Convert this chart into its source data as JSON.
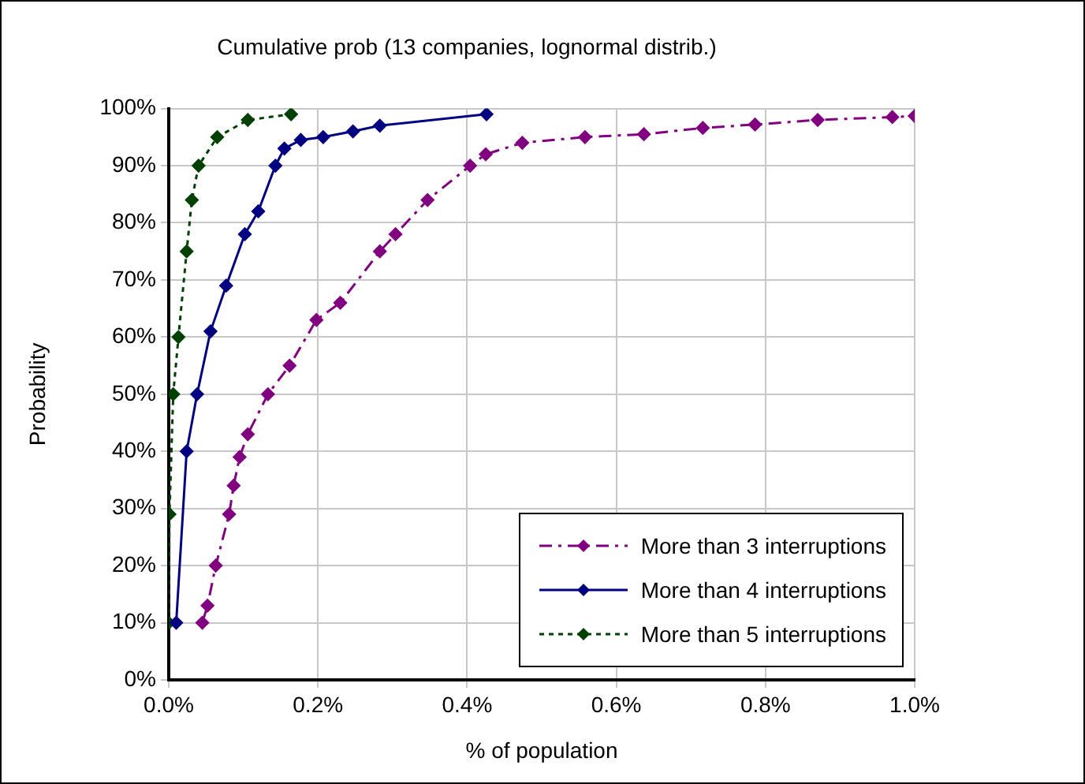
{
  "chart_data": {
    "type": "line",
    "title": "Cumulative prob (13 companies, lognormal distrib.)",
    "xlabel": "% of population",
    "ylabel": "Probability",
    "xlim": [
      0,
      1
    ],
    "xticks": [
      {
        "value": 0,
        "label": "0.0%"
      },
      {
        "value": 0.2,
        "label": "0.2%"
      },
      {
        "value": 0.4,
        "label": "0.4%"
      },
      {
        "value": 0.6,
        "label": "0.6%"
      },
      {
        "value": 0.8,
        "label": "0.8%"
      },
      {
        "value": 1,
        "label": "1.0%"
      }
    ],
    "ylim": [
      0,
      100
    ],
    "yticks": [
      {
        "value": 0,
        "label": "0%"
      },
      {
        "value": 10,
        "label": "10%"
      },
      {
        "value": 20,
        "label": "20%"
      },
      {
        "value": 30,
        "label": "30%"
      },
      {
        "value": 40,
        "label": "40%"
      },
      {
        "value": 50,
        "label": "50%"
      },
      {
        "value": 60,
        "label": "60%"
      },
      {
        "value": 70,
        "label": "70%"
      },
      {
        "value": 80,
        "label": "80%"
      },
      {
        "value": 90,
        "label": "90%"
      },
      {
        "value": 100,
        "label": "100%"
      }
    ],
    "grid": true,
    "legend": "bottom right",
    "marker": "diamond",
    "series": [
      {
        "name": "More than 3 interruptions",
        "color": "#800080",
        "line_style": "dashed",
        "x": [
          0.045,
          0.052,
          0.063,
          0.081,
          0.087,
          0.095,
          0.106,
          0.133,
          0.162,
          0.198,
          0.23,
          0.283,
          0.304,
          0.347,
          0.404,
          0.425,
          0.474,
          0.558,
          0.637,
          0.716,
          0.786,
          0.87,
          0.97,
          1.0
        ],
        "values": [
          10,
          13,
          20,
          29,
          34,
          39,
          43,
          50,
          55,
          63,
          66,
          75,
          78,
          84,
          90,
          92,
          94,
          95,
          95.5,
          96.6,
          97.2,
          98,
          98.5,
          98.7
        ]
      },
      {
        "name": "More than 4 interruptions",
        "color": "#000080",
        "line_style": "solid",
        "x": [
          0.01,
          0.024,
          0.038,
          0.056,
          0.077,
          0.102,
          0.12,
          0.143,
          0.155,
          0.177,
          0.207,
          0.247,
          0.283,
          0.426
        ],
        "values": [
          10,
          40,
          50,
          61,
          69,
          78,
          82,
          90,
          93,
          94.5,
          95,
          96,
          97,
          99
        ]
      },
      {
        "name": "More than 5 interruptions",
        "color": "#004000",
        "line_style": "dotted",
        "x": [
          0,
          0.001,
          0.006,
          0.013,
          0.024,
          0.031,
          0.04,
          0.065,
          0.106,
          0.164
        ],
        "values": [
          10,
          29,
          50,
          60,
          75,
          84,
          90,
          95,
          98,
          99
        ]
      }
    ]
  }
}
